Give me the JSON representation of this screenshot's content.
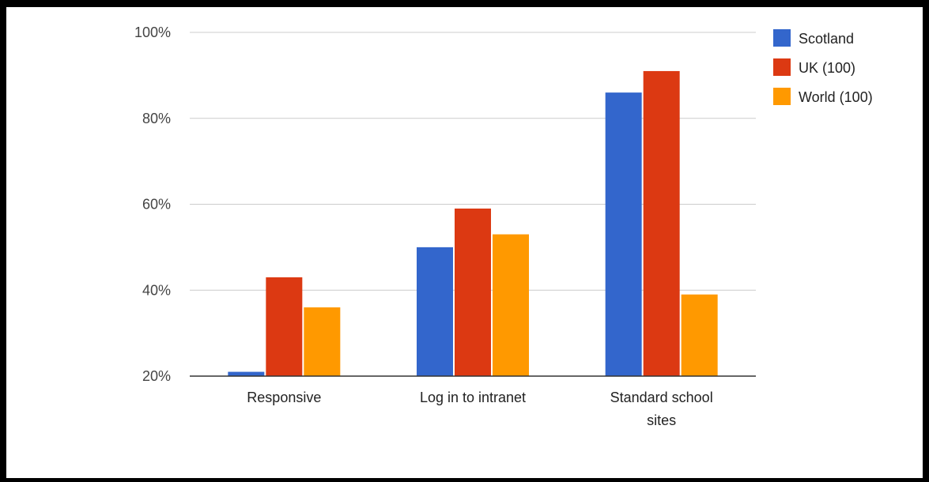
{
  "chart_data": {
    "type": "bar",
    "title": "",
    "xlabel": "",
    "ylabel": "",
    "categories": [
      [
        "Responsive"
      ],
      [
        "Log in to intranet"
      ],
      [
        "Standard school",
        "sites"
      ]
    ],
    "series": [
      {
        "name": "Scotland",
        "color": "#3366cc",
        "values": [
          21,
          50,
          86
        ]
      },
      {
        "name": "UK (100)",
        "color": "#dc3912",
        "values": [
          43,
          59,
          91
        ]
      },
      {
        "name": "World (100)",
        "color": "#ff9900",
        "values": [
          36,
          53,
          39
        ]
      }
    ],
    "ylim": [
      20,
      100
    ],
    "yticks": [
      20,
      40,
      60,
      80,
      100
    ],
    "ytick_labels": [
      "20%",
      "40%",
      "60%",
      "80%",
      "100%"
    ],
    "grid": true,
    "legend_position": "right-top"
  }
}
